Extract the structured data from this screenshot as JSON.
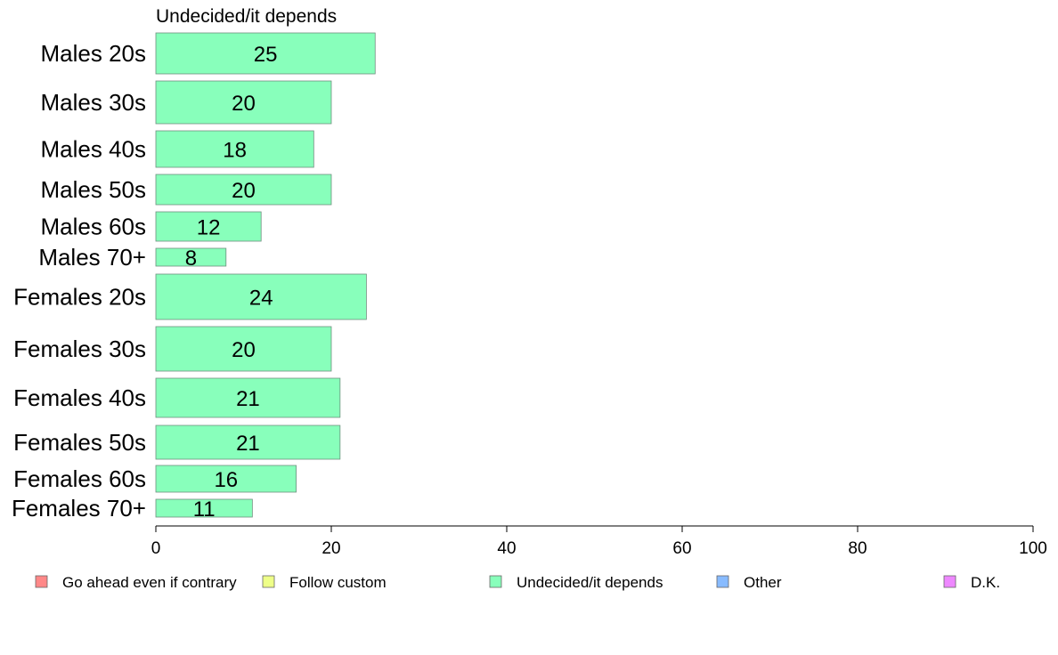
{
  "chart_data": {
    "type": "bar",
    "orientation": "horizontal",
    "title": "Undecided/it depends",
    "categories": [
      "Males 20s",
      "Males 30s",
      "Males 40s",
      "Males 50s",
      "Males 60s",
      "Males 70+",
      "Females 20s",
      "Females 30s",
      "Females 40s",
      "Females 50s",
      "Females 60s",
      "Females 70+"
    ],
    "values": [
      25,
      20,
      18,
      20,
      12,
      8,
      24,
      20,
      21,
      21,
      16,
      11
    ],
    "xlim": [
      0,
      100
    ],
    "xticks": [
      0,
      20,
      40,
      60,
      80,
      100
    ],
    "grid": false,
    "bar_color": "#88ffbb",
    "legend_position": "bottom",
    "legend": [
      {
        "label": "Go ahead even if contrary",
        "color": "#ff8888"
      },
      {
        "label": "Follow custom",
        "color": "#eeff88"
      },
      {
        "label": "Undecided/it depends",
        "color": "#88ffbb"
      },
      {
        "label": "Other",
        "color": "#88bbff"
      },
      {
        "label": "D.K.",
        "color": "#ee88ff"
      }
    ]
  }
}
